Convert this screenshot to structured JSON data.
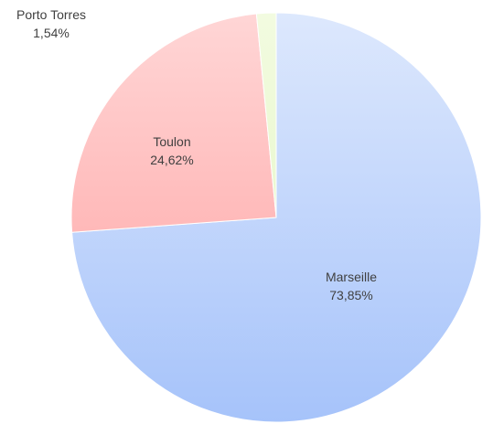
{
  "chart_data": {
    "type": "pie",
    "title": "",
    "slices": [
      {
        "name": "Marseille",
        "value": 73.85,
        "label": "73,85%",
        "color_top": "#dde8fd",
        "color_bottom": "#a6c3fa"
      },
      {
        "name": "Toulon",
        "value": 24.62,
        "label": "24,62%",
        "color_top": "#ffd6d6",
        "color_bottom": "#ff9f9f"
      },
      {
        "name": "Porto Torres",
        "value": 1.54,
        "label": "1,54%",
        "color_top": "#f2fbe0",
        "color_bottom": "#e2f5bf"
      }
    ],
    "start_angle_deg": 0,
    "direction": "clockwise",
    "legend": "none",
    "data_labels": "category and percentage"
  }
}
